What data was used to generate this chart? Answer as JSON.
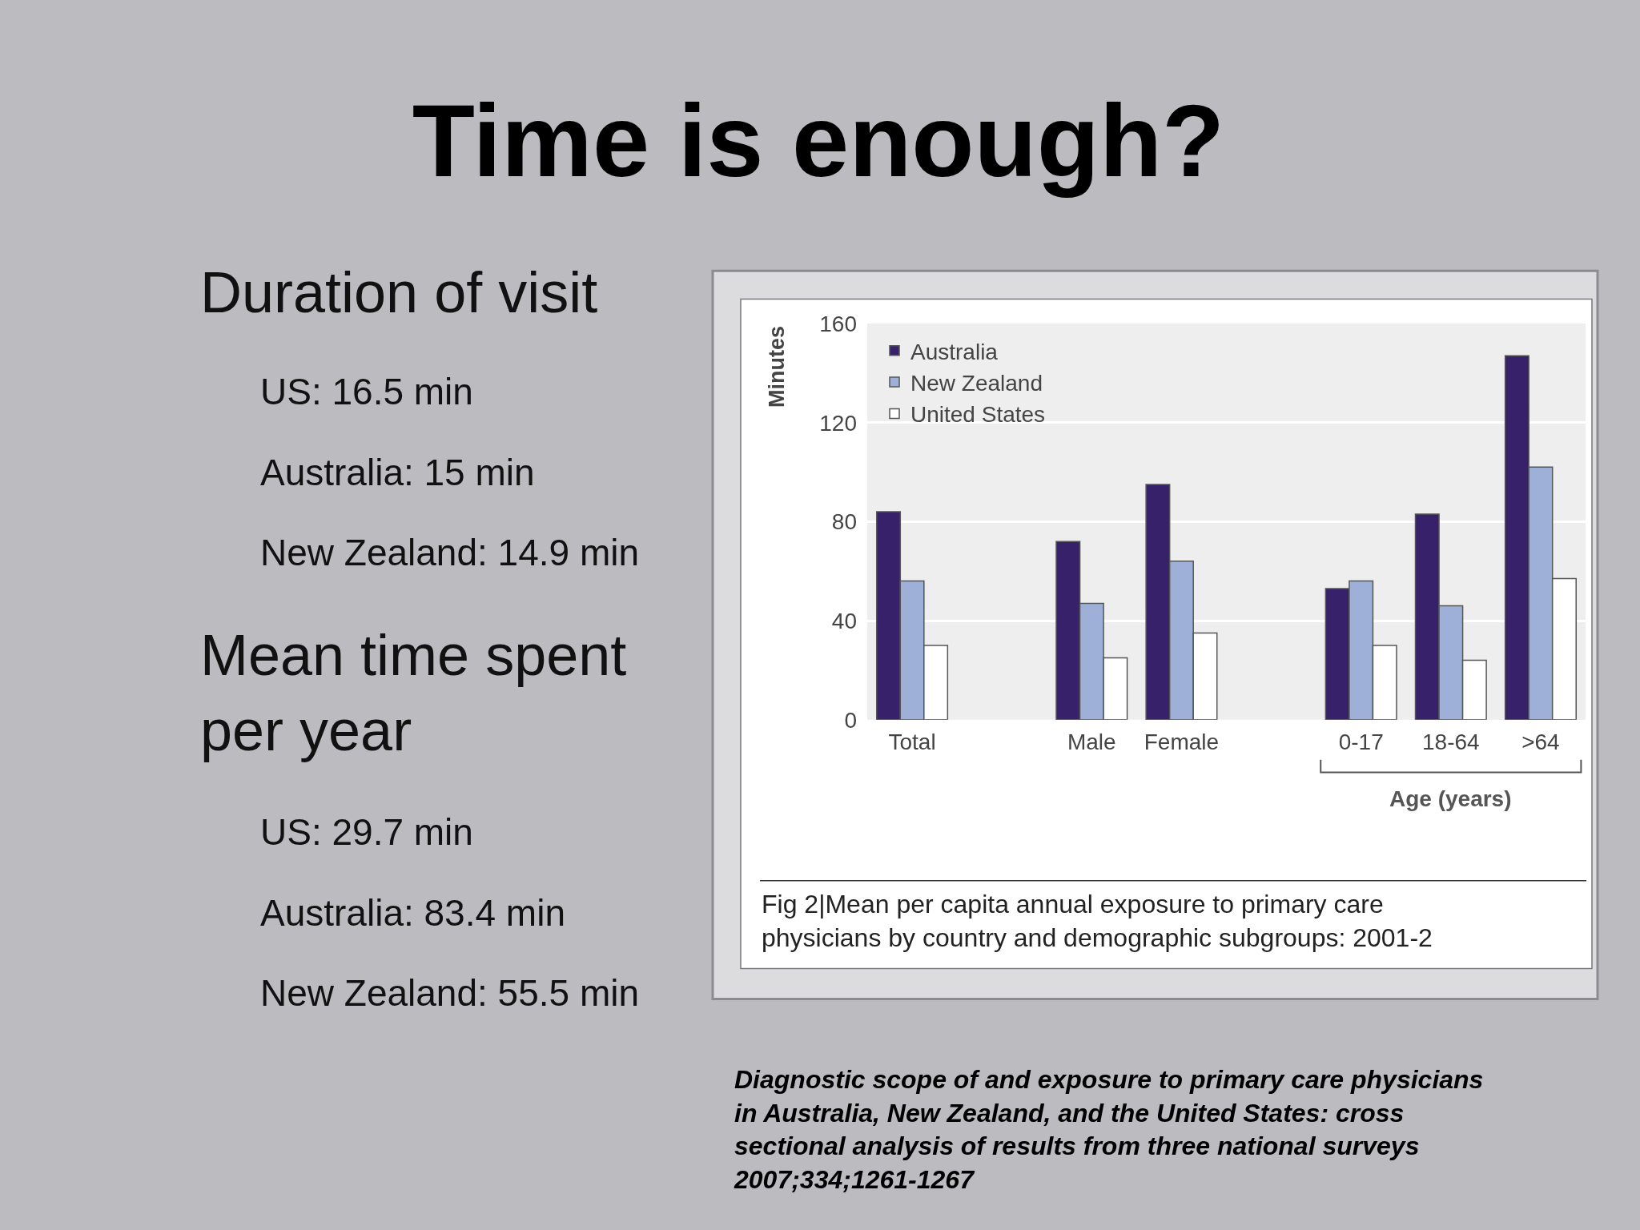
{
  "chart_data": {
    "type": "bar",
    "title": "Time is enough?",
    "ylabel": "Minutes",
    "xlabel": "Age (years)",
    "categories": [
      "Total",
      null,
      "Male",
      "Female",
      null,
      "0-17",
      "18-64",
      ">64"
    ],
    "series": [
      {
        "name": "Australia",
        "color": "#37216a",
        "values": [
          84,
          null,
          72,
          95,
          null,
          53,
          83,
          147
        ]
      },
      {
        "name": "New Zealand",
        "color": "#9fb0d8",
        "values": [
          56,
          null,
          47,
          64,
          null,
          56,
          46,
          102
        ]
      },
      {
        "name": "United States",
        "color": "#ffffff",
        "values": [
          30,
          null,
          25,
          35,
          null,
          30,
          24,
          57
        ]
      }
    ],
    "ylim": [
      0,
      160
    ],
    "yticks": [
      0,
      40,
      80,
      120,
      160
    ],
    "grid": "y",
    "legend": "top left",
    "annotations": [
      "Duration of visit",
      "US: 16.5 min",
      "Australia: 15 min",
      "New Zealand: 14.9 min",
      "Mean time spent per year",
      "US: 29.7 min",
      "Australia: 83.4 min",
      "New Zealand: 55.5 min",
      "Fig 2|Mean per capita annual exposure to primary care physicians by country and demographic subgroups: 2001-2",
      "Diagnostic scope of and exposure to primary care physicians in Australia, New Zealand, and the United States: cross sectional analysis of results from three national surveys 2007;334;1261-1267"
    ]
  }
}
